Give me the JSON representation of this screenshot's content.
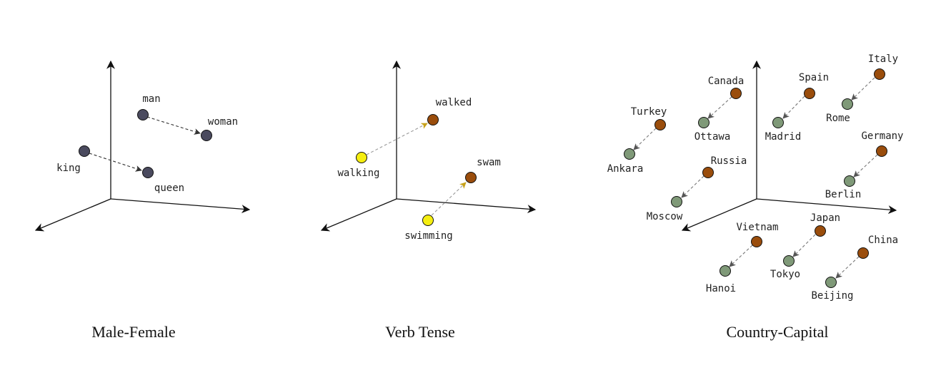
{
  "colors": {
    "axis": "#111111",
    "gender_point": "#4a4a5e",
    "present_point": "#f5ee10",
    "past_point": "#9a4d0c",
    "country_point": "#9a4d0c",
    "capital_point": "#7f9978",
    "arrow_dark": "#333333",
    "arrow_light": "#999999",
    "arrow_head_tense": "#c6a11a"
  },
  "panels": [
    {
      "id": "male-female",
      "caption": "Male-Female",
      "points": [
        {
          "word": "man"
        },
        {
          "word": "woman"
        },
        {
          "word": "king"
        },
        {
          "word": "queen"
        }
      ]
    },
    {
      "id": "verb-tense",
      "caption": "Verb Tense",
      "points": [
        {
          "word": "walking"
        },
        {
          "word": "walked"
        },
        {
          "word": "swimming"
        },
        {
          "word": "swam"
        }
      ]
    },
    {
      "id": "country-capital",
      "caption": "Country-Capital",
      "points": [
        {
          "word": "Canada"
        },
        {
          "word": "Ottawa"
        },
        {
          "word": "Spain"
        },
        {
          "word": "Madrid"
        },
        {
          "word": "Italy"
        },
        {
          "word": "Rome"
        },
        {
          "word": "Turkey"
        },
        {
          "word": "Ankara"
        },
        {
          "word": "Germany"
        },
        {
          "word": "Berlin"
        },
        {
          "word": "Russia"
        },
        {
          "word": "Moscow"
        },
        {
          "word": "Japan"
        },
        {
          "word": "Tokyo"
        },
        {
          "word": "Vietnam"
        },
        {
          "word": "Hanoi"
        },
        {
          "word": "China"
        },
        {
          "word": "Beijing"
        }
      ]
    }
  ]
}
